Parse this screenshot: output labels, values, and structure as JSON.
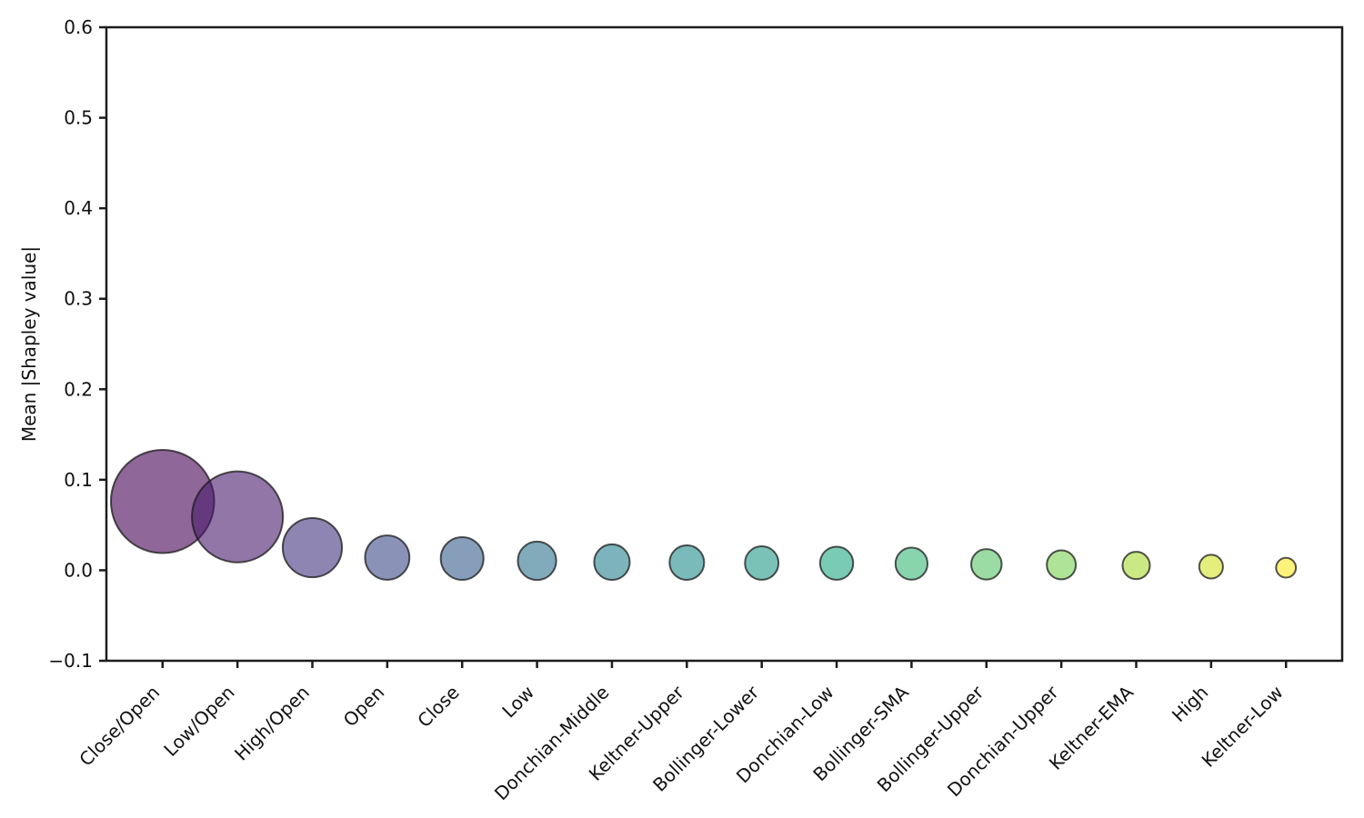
{
  "figure": {
    "background": "#ffffff",
    "axis_color": "#1c1c1c",
    "text_color": "#111111"
  },
  "chart_data": {
    "type": "scatter",
    "variant": "bubble",
    "title": "",
    "xlabel": "",
    "ylabel": "Mean |Shapley value|",
    "ylim": [
      -0.1,
      0.6
    ],
    "yticks": [
      0.6,
      0.5,
      0.4,
      0.3,
      0.2,
      0.1,
      0.0,
      -0.1
    ],
    "ytick_labels": [
      "0.6",
      "0.5",
      "0.4",
      "0.3",
      "0.2",
      "0.1",
      "0.0",
      "−0.1"
    ],
    "grid": false,
    "legend_position": "none",
    "bubble_size_encodes": "value (area proportional to Mean |Shapley value|)",
    "categories": [
      "Close/Open",
      "Low/Open",
      "High/Open",
      "Open",
      "Close",
      "Low",
      "Donchian-Middle",
      "Keltner-Upper",
      "Bollinger-Lower",
      "Donchian-Low",
      "Bollinger-SMA",
      "Bollinger-Upper",
      "Donchian-Upper",
      "Keltner-EMA",
      "High",
      "Keltner-Low"
    ],
    "values": [
      0.076,
      0.059,
      0.025,
      0.014,
      0.013,
      0.0105,
      0.009,
      0.0085,
      0.008,
      0.0078,
      0.0073,
      0.0066,
      0.006,
      0.0053,
      0.004,
      0.0028
    ],
    "colors": [
      "#440154",
      "#471B6C",
      "#45337E",
      "#3E4A89",
      "#355E8C",
      "#2D718E",
      "#26828E",
      "#228C8D",
      "#219989",
      "#22A884",
      "#39B777",
      "#56C566",
      "#7AD151",
      "#A7DA34",
      "#D2E226",
      "#FDE725"
    ],
    "fill_alpha": 0.6,
    "edge_color": "rgba(25,25,25,0.75)"
  }
}
